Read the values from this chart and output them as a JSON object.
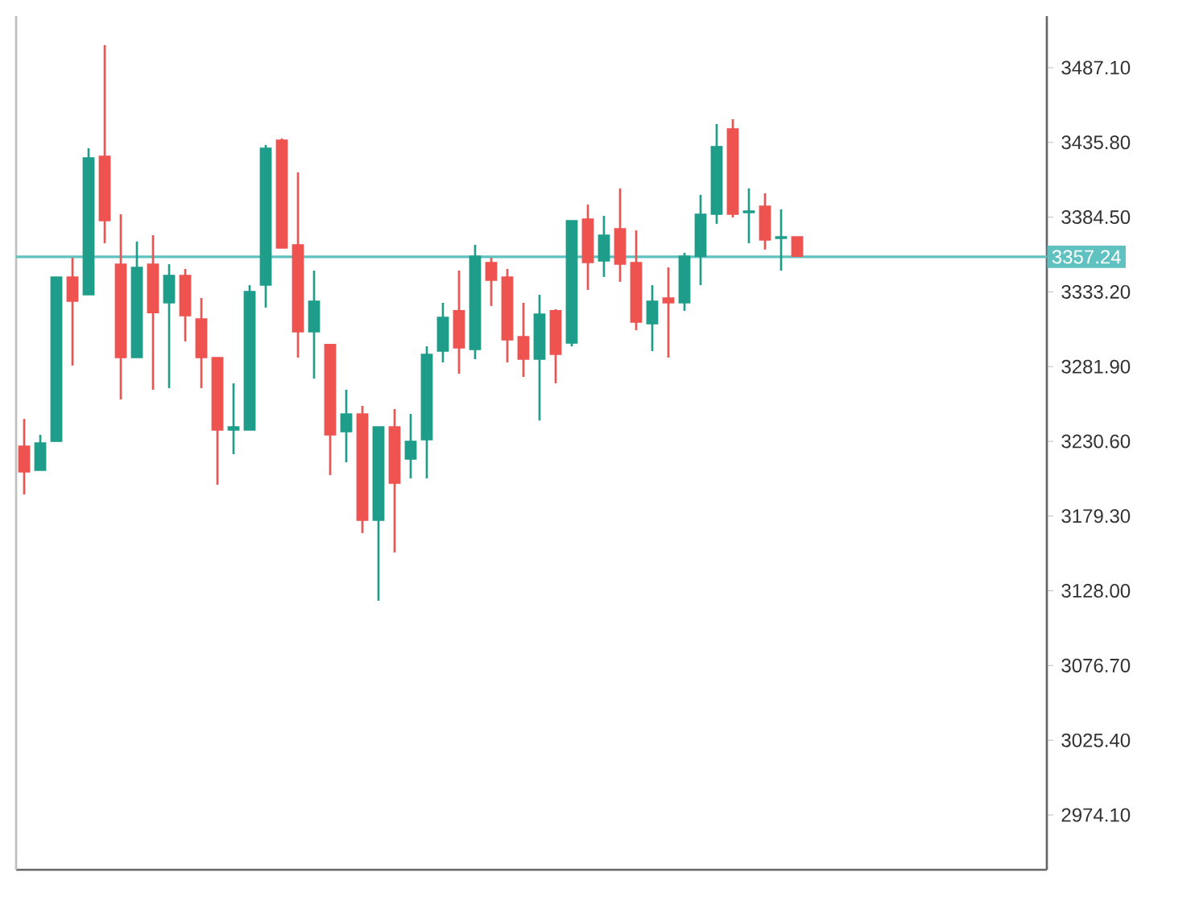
{
  "chart_data": {
    "type": "candlestick",
    "categories": [
      null,
      null,
      null,
      null,
      null,
      null,
      null,
      null,
      null,
      null,
      null,
      null,
      null,
      null,
      null,
      null,
      null,
      null,
      null,
      null,
      null,
      null,
      null,
      null,
      null,
      null,
      null,
      null,
      null,
      null,
      null,
      null,
      null,
      null,
      null,
      null,
      null,
      null,
      null,
      null,
      null,
      null,
      null,
      null,
      null,
      null,
      null,
      null,
      null,
      null,
      null,
      null,
      null,
      null,
      null,
      null,
      null,
      null,
      null,
      null,
      null,
      null,
      null,
      null
    ],
    "ohlc": [
      [
        3227.3,
        3246.0,
        3194.1,
        3209.6
      ],
      [
        3210.7,
        3235.0,
        3210.7,
        3229.5
      ],
      [
        3230.6,
        3343.4,
        3230.6,
        3343.4
      ],
      [
        3343.4,
        3356.6,
        3282.6,
        3326.8
      ],
      [
        3331.2,
        3431.8,
        3331.2,
        3425.2
      ],
      [
        3426.3,
        3502.6,
        3366.6,
        3382.1
      ],
      [
        3352.2,
        3386.5,
        3259.3,
        3288.1
      ],
      [
        3288.1,
        3367.7,
        3288.1,
        3350.0
      ],
      [
        3352.2,
        3372.1,
        3266.0,
        3319.0
      ],
      [
        3325.7,
        3352.2,
        3267.1,
        3344.5
      ],
      [
        3344.5,
        3348.9,
        3299.2,
        3316.8
      ],
      [
        3314.6,
        3329.0,
        3267.1,
        3288.1
      ],
      [
        3288.1,
        3288.1,
        3200.8,
        3238.3
      ],
      [
        3238.3,
        3270.4,
        3221.8,
        3240.5
      ],
      [
        3238.3,
        3337.8,
        3238.3,
        3333.4
      ],
      [
        3337.8,
        3434.0,
        3322.4,
        3431.8
      ],
      [
        3437.3,
        3438.5,
        3363.3,
        3363.3
      ],
      [
        3365.5,
        3415.2,
        3288.1,
        3305.8
      ],
      [
        3305.8,
        3347.8,
        3273.7,
        3326.8
      ],
      [
        3297.0,
        3297.0,
        3207.4,
        3235.0
      ],
      [
        3237.2,
        3266.0,
        3216.2,
        3249.4
      ],
      [
        3249.4,
        3254.9,
        3167.6,
        3176.4
      ],
      [
        3176.4,
        3240.5,
        3121.2,
        3240.5
      ],
      [
        3240.5,
        3252.7,
        3154.3,
        3201.9
      ],
      [
        3218.4,
        3249.4,
        3205.2,
        3230.6
      ],
      [
        3231.7,
        3295.8,
        3205.2,
        3290.3
      ],
      [
        3292.5,
        3325.7,
        3284.8,
        3315.7
      ],
      [
        3320.2,
        3347.8,
        3277.0,
        3294.7
      ],
      [
        3293.6,
        3365.5,
        3287.0,
        3357.7
      ],
      [
        3353.3,
        3356.6,
        3323.5,
        3341.2
      ],
      [
        3343.4,
        3348.9,
        3284.8,
        3300.3
      ],
      [
        3302.5,
        3325.7,
        3274.8,
        3287.0
      ],
      [
        3287.0,
        3331.2,
        3244.9,
        3317.9
      ],
      [
        3320.2,
        3321.3,
        3270.4,
        3290.3
      ],
      [
        3298.1,
        3382.1,
        3295.8,
        3382.1
      ],
      [
        3383.2,
        3393.1,
        3334.5,
        3353.3
      ],
      [
        3354.4,
        3385.4,
        3343.4,
        3372.1
      ],
      [
        3376.5,
        3404.2,
        3340.1,
        3352.2
      ],
      [
        3353.3,
        3375.4,
        3306.9,
        3312.4
      ],
      [
        3311.3,
        3337.8,
        3292.5,
        3326.8
      ],
      [
        3329.0,
        3350.0,
        3288.1,
        3325.7
      ],
      [
        3325.7,
        3360.0,
        3320.2,
        3357.7
      ],
      [
        3357.7,
        3399.8,
        3337.8,
        3386.5
      ],
      [
        3386.5,
        3448.4,
        3379.9,
        3432.9
      ],
      [
        3445.1,
        3451.7,
        3384.3,
        3386.5
      ],
      [
        3387.6,
        3404.2,
        3366.6,
        3388.7
      ],
      [
        3392.0,
        3400.9,
        3362.2,
        3368.8
      ],
      [
        3369.9,
        3389.8,
        3347.8,
        3371.0
      ],
      [
        3371.0,
        3371.0,
        3357.7,
        3357.7
      ],
      null,
      null,
      null,
      null,
      null,
      null,
      null,
      null,
      null,
      null,
      null,
      null,
      null,
      null,
      null
    ],
    "ylim": [
      2936.5,
      3522.5
    ],
    "yticks": [
      {
        "value": 3487.1,
        "label": "3487.10"
      },
      {
        "value": 3435.8,
        "label": "3435.80"
      },
      {
        "value": 3384.5,
        "label": "3384.50"
      },
      {
        "value": 3333.2,
        "label": "3333.20"
      },
      {
        "value": 3281.9,
        "label": "3281.90"
      },
      {
        "value": 3230.6,
        "label": "3230.60"
      },
      {
        "value": 3179.3,
        "label": "3179.30"
      },
      {
        "value": 3128.0,
        "label": "3128.00"
      },
      {
        "value": 3076.7,
        "label": "3076.70"
      },
      {
        "value": 3025.4,
        "label": "3025.40"
      },
      {
        "value": 2974.1,
        "label": "2974.10"
      }
    ],
    "ref_lines": [
      {
        "axis": "y",
        "value": 3357.24,
        "label": "3357.24",
        "color": "#5fc1c0"
      }
    ]
  }
}
